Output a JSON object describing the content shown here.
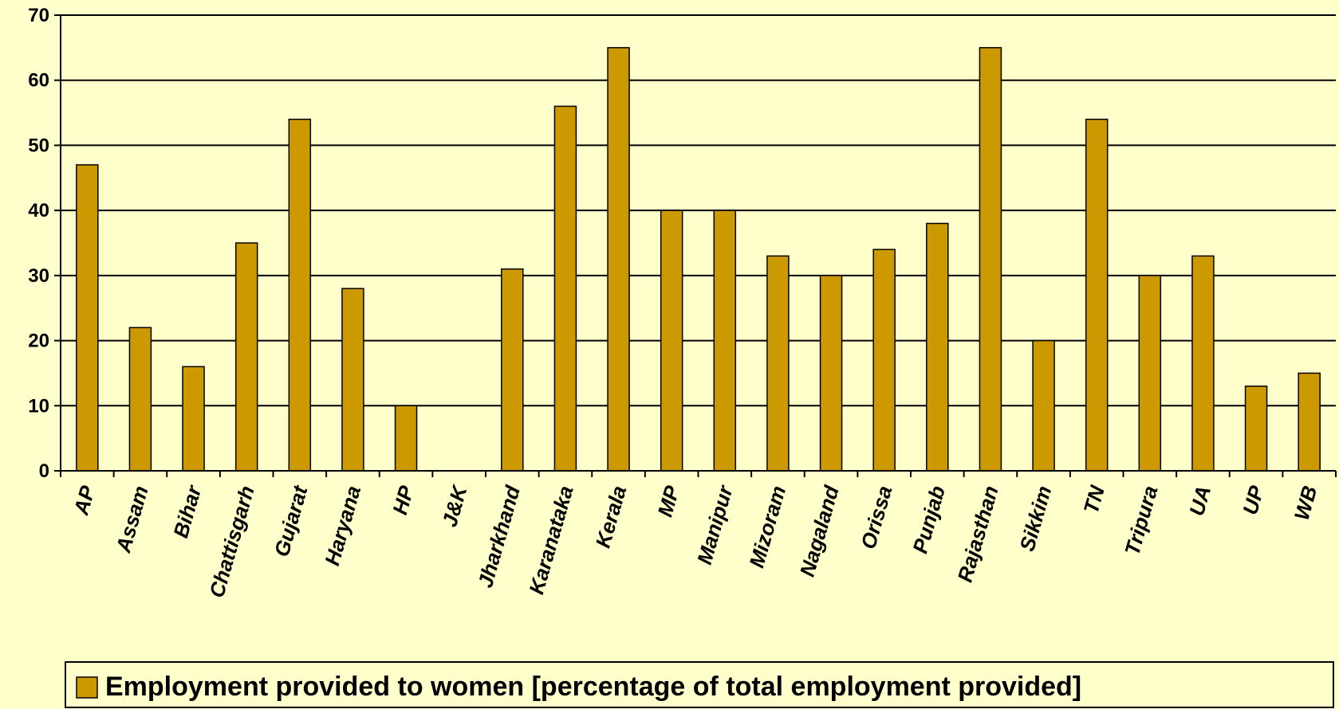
{
  "colors": {
    "background": "#FFFFCC",
    "bar_fill": "#CC9900",
    "bar_stroke": "#000000",
    "grid": "#000000"
  },
  "chart_data": {
    "type": "bar",
    "categories": [
      "AP",
      "Assam",
      "Bihar",
      "Chattisgarh",
      "Gujarat",
      "Haryana",
      "HP",
      "J&K",
      "Jharkhand",
      "Karanataka",
      "Kerala",
      "MP",
      "Manipur",
      "Mizoram",
      "Nagaland",
      "Orissa",
      "Punjab",
      "Rajasthan",
      "Sikkim",
      "TN",
      "Tripura",
      "UA",
      "UP",
      "WB"
    ],
    "series": [
      {
        "name": "Employment provided to women [percentage of total employment provided]",
        "values": [
          47,
          22,
          16,
          35,
          54,
          28,
          10,
          0,
          31,
          56,
          65,
          40,
          40,
          33,
          30,
          34,
          38,
          65,
          20,
          54,
          30,
          33,
          13,
          15
        ]
      }
    ],
    "ylim": [
      0,
      70
    ],
    "yticks": [
      0,
      10,
      20,
      30,
      40,
      50,
      60,
      70
    ],
    "grid": true,
    "legend_position": "bottom"
  }
}
